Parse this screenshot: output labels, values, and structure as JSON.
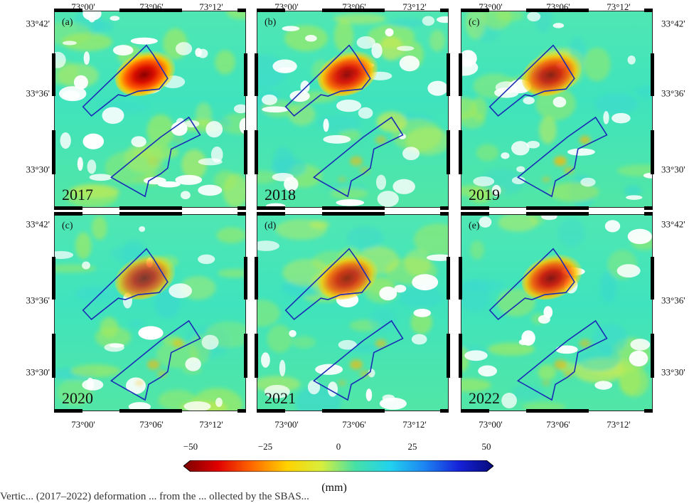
{
  "axis": {
    "lon_labels": [
      "73°00'",
      "73°06'",
      "73°12'"
    ],
    "lat_labels": [
      "33°42'",
      "33°36'",
      "33°30'"
    ]
  },
  "panels": [
    {
      "letter": "(a)",
      "year": "2017",
      "white_level": 0.9,
      "intensity": 1.0,
      "south_spots": 0.2
    },
    {
      "letter": "(b)",
      "year": "2018",
      "white_level": 0.8,
      "intensity": 0.95,
      "south_spots": 0.55
    },
    {
      "letter": "(c)",
      "year": "2019",
      "white_level": 0.6,
      "intensity": 0.85,
      "south_spots": 0.75
    },
    {
      "letter": "(c)",
      "year": "2020",
      "white_level": 0.45,
      "intensity": 0.75,
      "south_spots": 0.6
    },
    {
      "letter": "(d)",
      "year": "2021",
      "white_level": 0.5,
      "intensity": 0.8,
      "south_spots": 0.65
    },
    {
      "letter": "(e)",
      "year": "2022",
      "white_level": 0.45,
      "intensity": 0.9,
      "south_spots": 0.6
    }
  ],
  "colorbar": {
    "ticks": [
      "−50",
      "−25",
      "0",
      "25",
      "50"
    ],
    "unit": "(mm)",
    "colors": [
      "#7a0000",
      "#e00000",
      "#ff6a00",
      "#ffd200",
      "#d8ee3c",
      "#45e0a8",
      "#22d2ee",
      "#1d84f2",
      "#1622d8",
      "#060a7a"
    ]
  },
  "caption": "Vertic... (2017–2022) deformation ... from the ... ollected by the SBAS..."
}
